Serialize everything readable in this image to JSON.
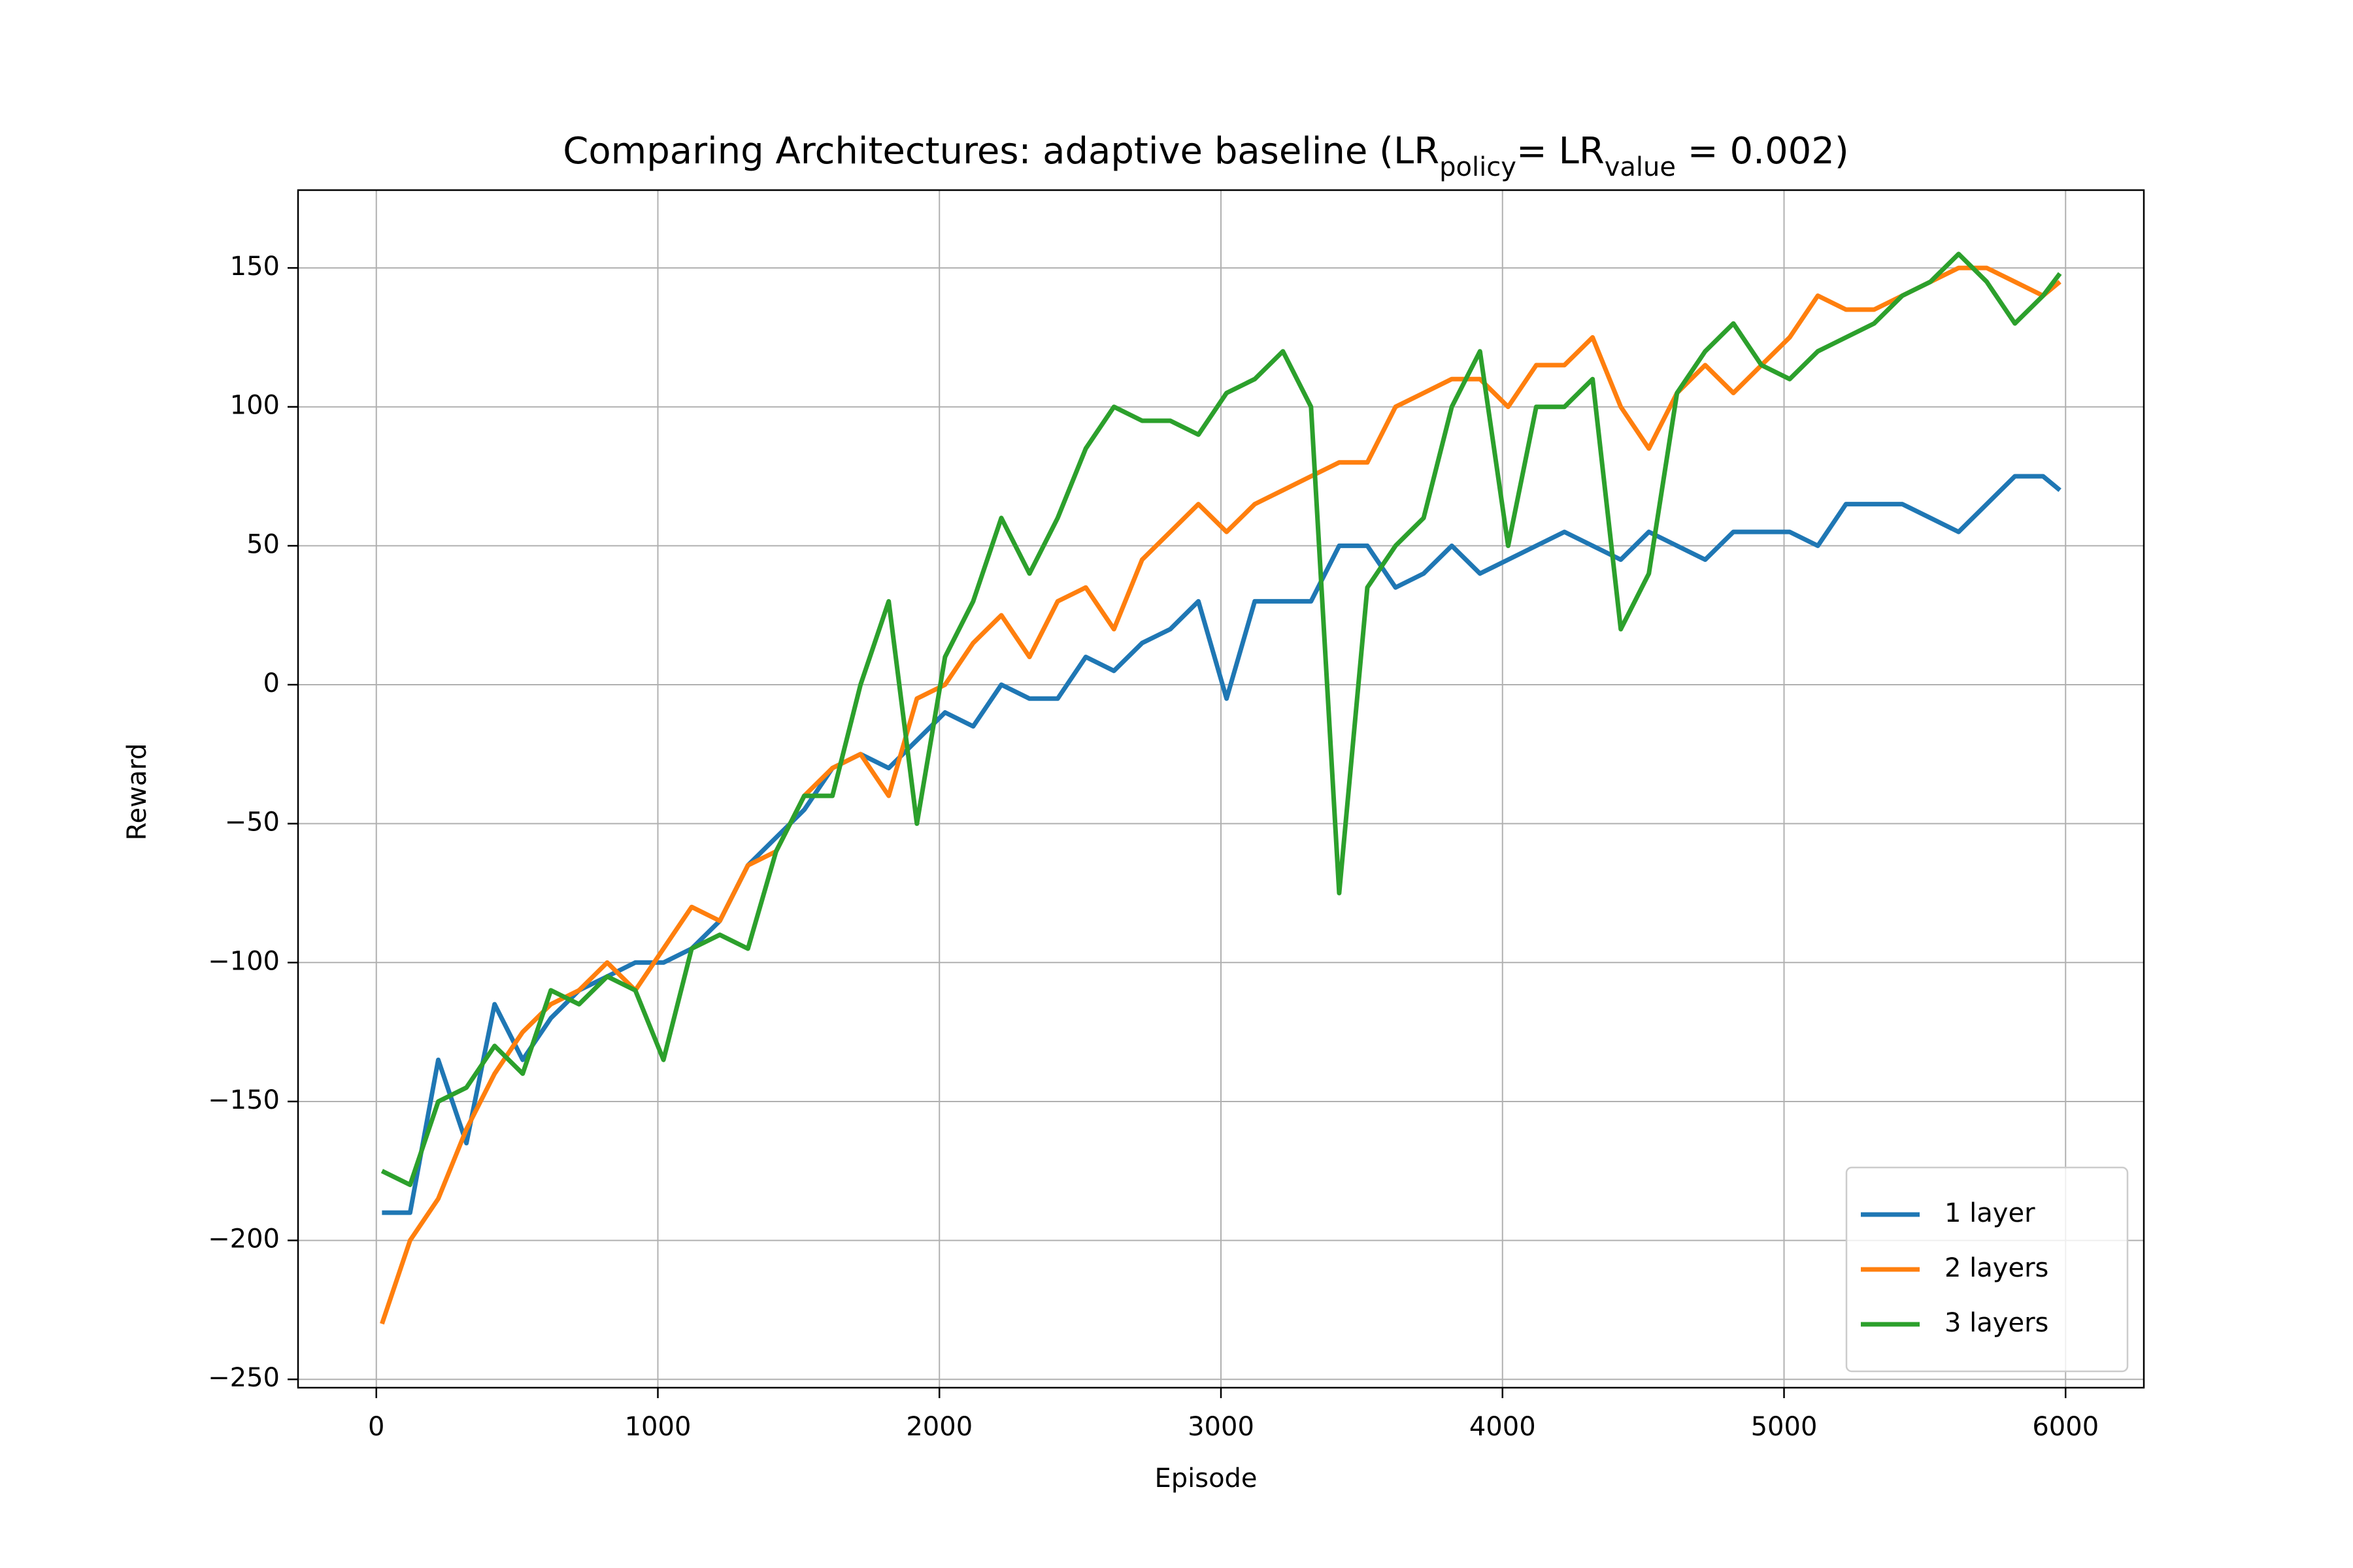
{
  "chart_data": {
    "type": "line",
    "title": [
      {
        "text": "Comparing Architectures: adaptive baseline (LR"
      },
      {
        "text": "policy",
        "subscript": true
      },
      {
        "text": "= LR"
      },
      {
        "text": "value",
        "subscript": true
      },
      {
        "text": " = 0.002)"
      }
    ],
    "x_label": "Episode",
    "y_label": "Reward",
    "x": [
      20,
      120,
      220,
      320,
      420,
      520,
      620,
      720,
      820,
      920,
      1020,
      1120,
      1220,
      1320,
      1420,
      1520,
      1620,
      1720,
      1820,
      1920,
      2020,
      2120,
      2220,
      2320,
      2420,
      2520,
      2620,
      2720,
      2820,
      2920,
      3020,
      3120,
      3220,
      3320,
      3420,
      3520,
      3620,
      3720,
      3820,
      3920,
      4020,
      4120,
      4220,
      4320,
      4420,
      4520,
      4620,
      4720,
      4820,
      4920,
      5020,
      5120,
      5220,
      5320,
      5420,
      5520,
      5620,
      5720,
      5820,
      5920,
      5980
    ],
    "series": [
      {
        "name": "1 layer",
        "color": "#1f77b4",
        "values": [
          -190,
          -190,
          -135,
          -165,
          -115,
          -135,
          -120,
          -110,
          -105,
          -100,
          -100,
          -95,
          -85,
          -65,
          -55,
          -45,
          -30,
          -25,
          -30,
          -20,
          -10,
          -15,
          0,
          -5,
          -5,
          10,
          5,
          15,
          20,
          30,
          -5,
          30,
          30,
          30,
          50,
          50,
          35,
          40,
          50,
          40,
          45,
          50,
          55,
          50,
          45,
          55,
          50,
          45,
          55,
          55,
          55,
          50,
          65,
          65,
          65,
          60,
          55,
          65,
          75,
          75,
          70
        ]
      },
      {
        "name": "2 layers",
        "color": "#ff7f0e",
        "values": [
          -230,
          -200,
          -185,
          -160,
          -140,
          -125,
          -115,
          -110,
          -100,
          -110,
          -95,
          -80,
          -85,
          -65,
          -60,
          -40,
          -30,
          -25,
          -40,
          -5,
          0,
          15,
          25,
          10,
          30,
          35,
          20,
          45,
          55,
          65,
          55,
          65,
          70,
          75,
          80,
          80,
          100,
          105,
          110,
          110,
          100,
          115,
          115,
          125,
          100,
          85,
          105,
          115,
          105,
          115,
          125,
          140,
          135,
          135,
          140,
          145,
          150,
          150,
          145,
          140,
          145
        ]
      },
      {
        "name": "3 layers",
        "color": "#2ca02c",
        "values": [
          -175,
          -180,
          -150,
          -145,
          -130,
          -140,
          -110,
          -115,
          -105,
          -110,
          -135,
          -95,
          -90,
          -95,
          -60,
          -40,
          -40,
          0,
          30,
          -50,
          10,
          30,
          60,
          40,
          60,
          85,
          100,
          95,
          95,
          90,
          105,
          110,
          120,
          100,
          -75,
          35,
          50,
          60,
          100,
          120,
          50,
          100,
          100,
          110,
          20,
          40,
          105,
          120,
          130,
          115,
          110,
          120,
          125,
          130,
          140,
          145,
          155,
          145,
          130,
          140,
          148
        ]
      }
    ],
    "xlim": [
      -278,
      6278
    ],
    "ylim": [
      -253,
      178
    ],
    "xticks": [
      0,
      1000,
      2000,
      3000,
      4000,
      5000,
      6000
    ],
    "yticks": [
      {
        "value": -250,
        "label": "−250"
      },
      {
        "value": -200,
        "label": "−200"
      },
      {
        "value": -150,
        "label": "−150"
      },
      {
        "value": -100,
        "label": "−100"
      },
      {
        "value": -50,
        "label": "−50"
      },
      0,
      50,
      100,
      150
    ],
    "grid": true,
    "legend": "lower right"
  }
}
